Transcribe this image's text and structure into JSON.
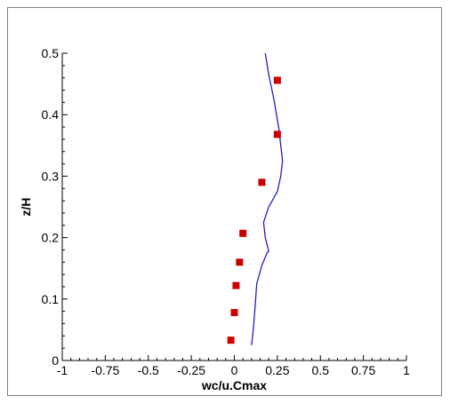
{
  "chart_data": {
    "type": "scatter",
    "xlabel": "wc/u.Cmax",
    "ylabel": "z/H",
    "xlim": [
      -1,
      1
    ],
    "ylim": [
      0,
      0.5
    ],
    "x_ticks": [
      -1,
      -0.75,
      -0.5,
      -0.25,
      0,
      0.25,
      0.5,
      0.75,
      1
    ],
    "x_tick_labels": [
      "-1",
      "-0.75",
      "-0.5",
      "-0.25",
      "0",
      "0.25",
      "0.5",
      "0.75",
      "1"
    ],
    "y_ticks": [
      0,
      0.1,
      0.2,
      0.3,
      0.4,
      0.5
    ],
    "y_tick_labels": [
      "0",
      "0.1",
      "0.2",
      "0.3",
      "0.4",
      "0.5"
    ],
    "grid": false,
    "series": [
      {
        "kind": "line",
        "color": "#2020c8",
        "points": [
          [
            0.1,
            0.025
          ],
          [
            0.11,
            0.05
          ],
          [
            0.12,
            0.085
          ],
          [
            0.13,
            0.125
          ],
          [
            0.16,
            0.155
          ],
          [
            0.19,
            0.175
          ],
          [
            0.2,
            0.178
          ],
          [
            0.18,
            0.2
          ],
          [
            0.17,
            0.225
          ],
          [
            0.2,
            0.25
          ],
          [
            0.25,
            0.275
          ],
          [
            0.27,
            0.3
          ],
          [
            0.28,
            0.325
          ],
          [
            0.27,
            0.35
          ],
          [
            0.26,
            0.375
          ],
          [
            0.23,
            0.425
          ],
          [
            0.2,
            0.465
          ],
          [
            0.18,
            0.5
          ]
        ]
      },
      {
        "kind": "markers",
        "color": "#cc0000",
        "marker": "square",
        "points": [
          [
            -0.02,
            0.033
          ],
          [
            0.0,
            0.078
          ],
          [
            0.01,
            0.122
          ],
          [
            0.03,
            0.16
          ],
          [
            0.05,
            0.207
          ],
          [
            0.16,
            0.29
          ],
          [
            0.25,
            0.368
          ],
          [
            0.25,
            0.456
          ]
        ]
      }
    ]
  }
}
